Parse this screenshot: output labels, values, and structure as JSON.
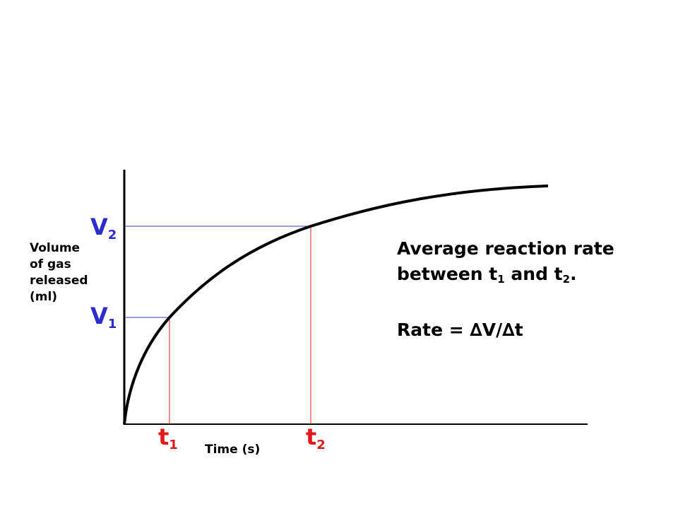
{
  "y_axis_label": [
    "Volume",
    "of gas",
    "released",
    "(ml)"
  ],
  "x_axis_label": "Time (s)",
  "v1": {
    "main": "V",
    "sub": "1"
  },
  "v2": {
    "main": "V",
    "sub": "2"
  },
  "t1": {
    "main": "t",
    "sub": "1"
  },
  "t2": {
    "main": "t",
    "sub": "2"
  },
  "note": {
    "line1": "Average reaction rate",
    "line2_pre": "between t",
    "line2_sub1": "1",
    "line2_mid": " and t",
    "line2_sub2": "2",
    "line2_end": ".",
    "formula": "Rate = ∆V/∆t"
  },
  "colors": {
    "curve": "#000000",
    "v_guides": "#3a3ac8",
    "t_guides": "#e11b1b",
    "v_labels": "#2b2bd0",
    "t_labels": "#e11b1b"
  }
}
